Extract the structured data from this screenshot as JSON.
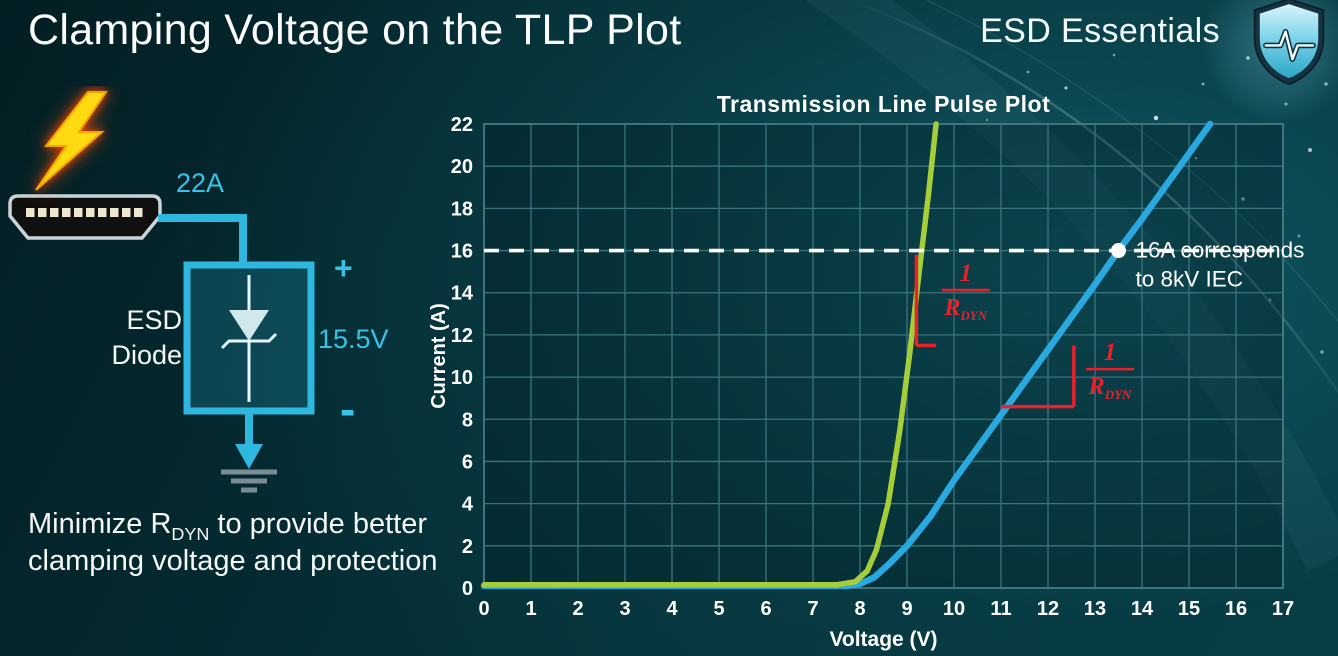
{
  "slide": {
    "title": "Clamping Voltage on the TLP Plot",
    "brand": "ESD Essentials"
  },
  "left_panel": {
    "surge_current_label": "22A",
    "device_line1": "ESD",
    "device_line2": "Diode",
    "plus_label": "+",
    "minus_label": "-",
    "clamp_voltage_label": "15.5V",
    "accent_color": "#38c2e8",
    "note": {
      "prefix": "Minimize R",
      "sub": "DYN",
      "suffix": " to provide better clamping voltage and protection"
    }
  },
  "chart_data": {
    "type": "line",
    "title": "Transmission Line Pulse Plot",
    "xlabel": "Voltage (V)",
    "ylabel": "Current (A)",
    "xlim": [
      0,
      17
    ],
    "ylim": [
      0,
      22
    ],
    "x_ticks": [
      0,
      1,
      2,
      3,
      4,
      5,
      6,
      7,
      8,
      9,
      10,
      11,
      12,
      13,
      14,
      15,
      16,
      17
    ],
    "y_ticks": [
      0,
      2,
      4,
      6,
      8,
      10,
      12,
      14,
      16,
      18,
      20,
      22
    ],
    "grid": true,
    "legend": "none",
    "series": [
      {
        "name": "low-rdyn-green-curve",
        "color": "#a6ce39",
        "width": 5.5,
        "points": [
          [
            0,
            0.15
          ],
          [
            7.5,
            0.15
          ],
          [
            7.9,
            0.3
          ],
          [
            8.15,
            0.8
          ],
          [
            8.35,
            1.8
          ],
          [
            8.6,
            4
          ],
          [
            8.85,
            7.5
          ],
          [
            9.05,
            11
          ],
          [
            9.25,
            14.8
          ],
          [
            9.45,
            18.5
          ],
          [
            9.62,
            22
          ]
        ]
      },
      {
        "name": "high-rdyn-blue-curve",
        "color": "#2aa9e0",
        "width": 6.5,
        "points": [
          [
            0,
            0.1
          ],
          [
            7.7,
            0.1
          ],
          [
            8.0,
            0.2
          ],
          [
            8.3,
            0.5
          ],
          [
            8.6,
            1.1
          ],
          [
            9.0,
            2.0
          ],
          [
            9.5,
            3.4
          ],
          [
            10,
            5.1
          ],
          [
            11,
            8.2
          ],
          [
            12,
            11.3
          ],
          [
            13,
            14.4
          ],
          [
            13.5,
            16
          ],
          [
            14,
            17.5
          ],
          [
            15,
            20.6
          ],
          [
            15.45,
            22
          ]
        ]
      }
    ],
    "reference_line": {
      "y": 16,
      "color": "#ffffff",
      "style": "dashed"
    },
    "marker": {
      "x": 13.5,
      "y": 16,
      "color": "#ffffff",
      "label_line1": "16A corresponds",
      "label_line2": "to 8kV IEC"
    },
    "annotations": [
      {
        "id": "green-slope",
        "color": "#e8212b",
        "numerator": "1",
        "denominator": "R",
        "denominator_sub": "DYN",
        "vline": {
          "x": 9.2,
          "y1": 11.5,
          "y2": 15.8
        },
        "hline": {
          "y": 11.5,
          "x1": 9.2,
          "x2": 9.62
        },
        "label_center_x": 10.25,
        "label_top_y": 15.55
      },
      {
        "id": "blue-slope",
        "color": "#e8212b",
        "numerator": "1",
        "denominator": "R",
        "denominator_sub": "DYN",
        "vline": {
          "x": 12.55,
          "y1": 8.6,
          "y2": 11.5
        },
        "hline": {
          "y": 8.6,
          "x1": 11.0,
          "x2": 12.55
        },
        "label_center_x": 13.32,
        "label_top_y": 11.8
      }
    ]
  }
}
